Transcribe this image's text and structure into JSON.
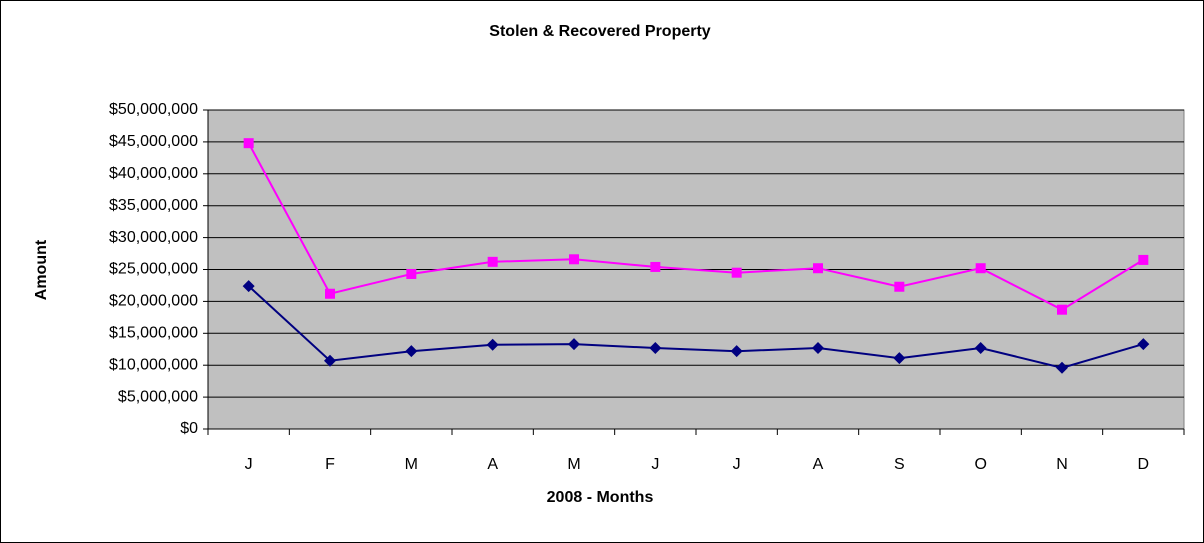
{
  "chart_data": {
    "type": "line",
    "title": "Stolen & Recovered Property",
    "x_label": "2008 - Months",
    "y_label": "Amount",
    "categories": [
      "J",
      "F",
      "M",
      "A",
      "M",
      "J",
      "J",
      "A",
      "S",
      "O",
      "N",
      "D"
    ],
    "series": [
      {
        "color": "#ff00ff",
        "marker": "square",
        "values": [
          44800000,
          21200000,
          24300000,
          26200000,
          26600000,
          25400000,
          24500000,
          25200000,
          22300000,
          25200000,
          18700000,
          26500000
        ]
      },
      {
        "color": "#000080",
        "marker": "diamond",
        "values": [
          22400000,
          10700000,
          12200000,
          13200000,
          13300000,
          12700000,
          12200000,
          12700000,
          11100000,
          12700000,
          9600000,
          13300000
        ]
      }
    ],
    "ylim": [
      0,
      50000000
    ],
    "yticks": [
      {
        "value": 0,
        "label": "$0"
      },
      {
        "value": 5000000,
        "label": "$5,000,000"
      },
      {
        "value": 10000000,
        "label": "$10,000,000"
      },
      {
        "value": 15000000,
        "label": "$15,000,000"
      },
      {
        "value": 20000000,
        "label": "$20,000,000"
      },
      {
        "value": 25000000,
        "label": "$25,000,000"
      },
      {
        "value": 30000000,
        "label": "$30,000,000"
      },
      {
        "value": 35000000,
        "label": "$35,000,000"
      },
      {
        "value": 40000000,
        "label": "$40,000,000"
      },
      {
        "value": 45000000,
        "label": "$45,000,000"
      },
      {
        "value": 50000000,
        "label": "$50,000,000"
      }
    ],
    "grid": true,
    "plot_background": "#c0c0c0"
  }
}
